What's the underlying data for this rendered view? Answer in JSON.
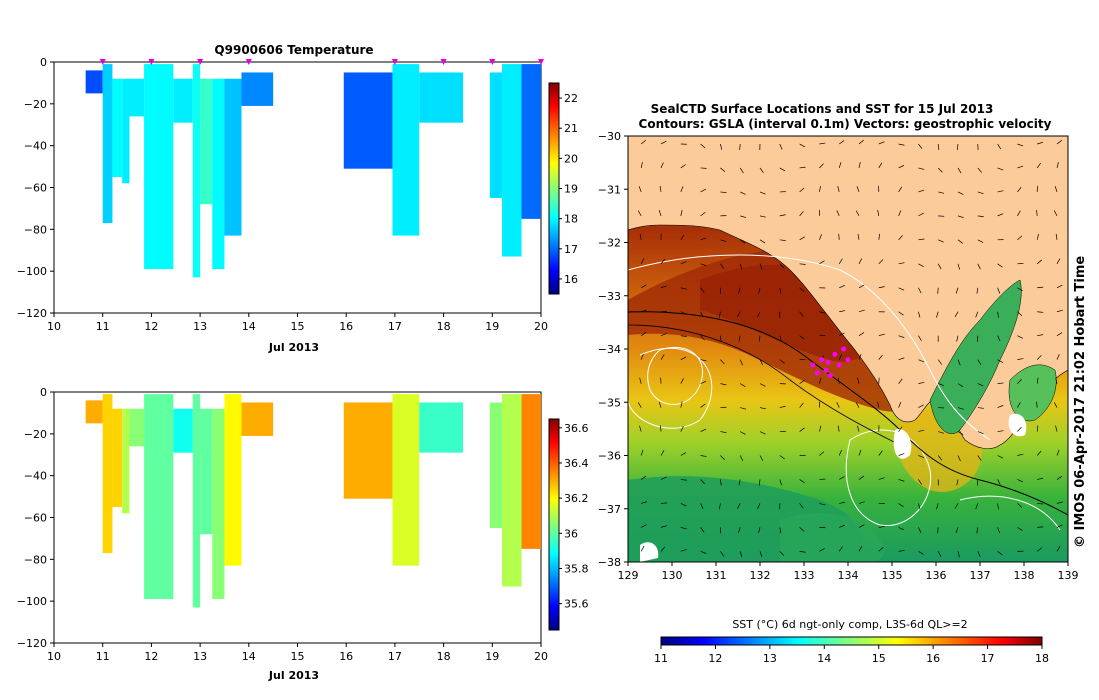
{
  "chart_data": [
    {
      "type": "heatmap",
      "panel": "temperature-profile",
      "title": "Q9900606  Temperature",
      "xlabel": "Jul 2013",
      "ylabel": "",
      "xlim": [
        10,
        20
      ],
      "ylim": [
        -120,
        0
      ],
      "x_ticks": [
        10,
        11,
        12,
        13,
        14,
        15,
        16,
        17,
        18,
        19,
        20
      ],
      "y_ticks": [
        0,
        -20,
        -40,
        -60,
        -80,
        -100,
        -120
      ],
      "y_tick_labels": [
        "0",
        "−20",
        "−40",
        "−60",
        "−80",
        "−100",
        "−120"
      ],
      "colorbar": {
        "min": 15.5,
        "max": 22.5,
        "ticks": [
          16,
          17,
          18,
          19,
          20,
          21,
          22
        ]
      },
      "profile_marker_days": [
        11.0,
        12.0,
        13.0,
        14.0,
        17.0,
        18.0,
        19.0,
        20.0
      ],
      "profiles": [
        {
          "x0": 10.65,
          "x1": 11.0,
          "top": -4,
          "bottom": -15,
          "value": 16.8
        },
        {
          "x0": 11.0,
          "x1": 11.2,
          "top": -1,
          "bottom": -77,
          "value": 17.7
        },
        {
          "x0": 11.2,
          "x1": 11.4,
          "top": -8,
          "bottom": -55,
          "value": 18.0
        },
        {
          "x0": 11.4,
          "x1": 11.55,
          "top": -8,
          "bottom": -58,
          "value": 17.9
        },
        {
          "x0": 11.55,
          "x1": 11.85,
          "top": -8,
          "bottom": -26,
          "value": 17.9
        },
        {
          "x0": 11.85,
          "x1": 12.45,
          "top": -1,
          "bottom": -99,
          "value": 18.0
        },
        {
          "x0": 12.45,
          "x1": 12.85,
          "top": -8,
          "bottom": -29,
          "value": 17.9
        },
        {
          "x0": 12.85,
          "x1": 13.0,
          "top": -1,
          "bottom": -103,
          "value": 18.1
        },
        {
          "x0": 13.0,
          "x1": 13.25,
          "top": -8,
          "bottom": -68,
          "value": 18.4
        },
        {
          "x0": 13.25,
          "x1": 13.5,
          "top": -8,
          "bottom": -99,
          "value": 18.0
        },
        {
          "x0": 13.5,
          "x1": 13.85,
          "top": -8,
          "bottom": -83,
          "value": 17.6
        },
        {
          "x0": 13.85,
          "x1": 14.5,
          "top": -5,
          "bottom": -21,
          "value": 17.2
        },
        {
          "x0": 15.95,
          "x1": 16.95,
          "top": -5,
          "bottom": -51,
          "value": 16.9
        },
        {
          "x0": 16.95,
          "x1": 17.5,
          "top": -1,
          "bottom": -83,
          "value": 17.9
        },
        {
          "x0": 17.5,
          "x1": 18.4,
          "top": -5,
          "bottom": -29,
          "value": 17.8
        },
        {
          "x0": 18.95,
          "x1": 19.2,
          "top": -5,
          "bottom": -65,
          "value": 17.8
        },
        {
          "x0": 19.2,
          "x1": 19.6,
          "top": -1,
          "bottom": -93,
          "value": 17.9
        },
        {
          "x0": 19.6,
          "x1": 20.0,
          "top": -1,
          "bottom": -75,
          "value": 17.0
        }
      ]
    },
    {
      "type": "heatmap",
      "panel": "salinity-profile",
      "title": "",
      "xlabel": "Jul 2013",
      "xlim": [
        10,
        20
      ],
      "ylim": [
        -120,
        0
      ],
      "x_ticks": [
        10,
        11,
        12,
        13,
        14,
        15,
        16,
        17,
        18,
        19,
        20
      ],
      "y_ticks": [
        0,
        -20,
        -40,
        -60,
        -80,
        -100,
        -120
      ],
      "y_tick_labels": [
        "0",
        "−20",
        "−40",
        "−60",
        "−80",
        "−100",
        "−120"
      ],
      "colorbar": {
        "min": 35.45,
        "max": 36.65,
        "ticks": [
          35.6,
          35.8,
          36.0,
          36.2,
          36.4,
          36.6
        ]
      },
      "profiles": [
        {
          "x0": 10.65,
          "x1": 11.0,
          "top": -4,
          "bottom": -15,
          "value": 36.3
        },
        {
          "x0": 11.0,
          "x1": 11.2,
          "top": -1,
          "bottom": -77,
          "value": 36.25
        },
        {
          "x0": 11.2,
          "x1": 11.4,
          "top": -8,
          "bottom": -55,
          "value": 36.25
        },
        {
          "x0": 11.4,
          "x1": 11.55,
          "top": -8,
          "bottom": -58,
          "value": 36.1
        },
        {
          "x0": 11.55,
          "x1": 11.85,
          "top": -8,
          "bottom": -26,
          "value": 36.05
        },
        {
          "x0": 11.85,
          "x1": 12.45,
          "top": -1,
          "bottom": -99,
          "value": 36.0
        },
        {
          "x0": 12.45,
          "x1": 12.85,
          "top": -8,
          "bottom": -29,
          "value": 35.9
        },
        {
          "x0": 12.85,
          "x1": 13.0,
          "top": -1,
          "bottom": -103,
          "value": 36.0
        },
        {
          "x0": 13.0,
          "x1": 13.25,
          "top": -8,
          "bottom": -68,
          "value": 36.0
        },
        {
          "x0": 13.25,
          "x1": 13.5,
          "top": -8,
          "bottom": -99,
          "value": 36.05
        },
        {
          "x0": 13.5,
          "x1": 13.85,
          "top": -1,
          "bottom": -83,
          "value": 36.2
        },
        {
          "x0": 13.85,
          "x1": 14.5,
          "top": -5,
          "bottom": -21,
          "value": 36.3
        },
        {
          "x0": 15.95,
          "x1": 16.95,
          "top": -5,
          "bottom": -51,
          "value": 36.3
        },
        {
          "x0": 16.95,
          "x1": 17.5,
          "top": -1,
          "bottom": -83,
          "value": 36.15
        },
        {
          "x0": 17.5,
          "x1": 18.4,
          "top": -5,
          "bottom": -29,
          "value": 35.95
        },
        {
          "x0": 18.95,
          "x1": 19.2,
          "top": -5,
          "bottom": -65,
          "value": 36.05
        },
        {
          "x0": 19.2,
          "x1": 19.6,
          "top": -1,
          "bottom": -93,
          "value": 36.1
        },
        {
          "x0": 19.6,
          "x1": 20.0,
          "top": -1,
          "bottom": -75,
          "value": 36.35
        }
      ]
    },
    {
      "type": "heatmap",
      "panel": "sst-map",
      "title": "SealCTD Surface Locations and SST for 15 Jul 2013",
      "subtitle": "Contours: GSLA (interval 0.1m) Vectors: geostrophic velocity",
      "xlim": [
        129,
        139
      ],
      "ylim": [
        -38,
        -30
      ],
      "x_ticks": [
        129,
        130,
        131,
        132,
        133,
        134,
        135,
        136,
        137,
        138,
        139
      ],
      "y_ticks": [
        -30,
        -31,
        -32,
        -33,
        -34,
        -35,
        -36,
        -37,
        -38
      ],
      "y_tick_labels": [
        "−30",
        "−31",
        "−32",
        "−33",
        "−34",
        "−35",
        "−36",
        "−37",
        "−38"
      ],
      "colorbar_label": "SST (°C) 6d ngt-only comp, L3S-6d QL>=2",
      "colorbar": {
        "min": 11,
        "max": 18,
        "ticks": [
          11,
          12,
          13,
          14,
          15,
          16,
          17,
          18
        ]
      },
      "seal_locations": [
        {
          "lon": 133.2,
          "lat": -34.3
        },
        {
          "lon": 133.4,
          "lat": -34.2
        },
        {
          "lon": 133.5,
          "lat": -34.4
        },
        {
          "lon": 133.7,
          "lat": -34.1
        },
        {
          "lon": 133.8,
          "lat": -34.3
        },
        {
          "lon": 133.6,
          "lat": -34.5
        },
        {
          "lon": 133.9,
          "lat": -34.0
        },
        {
          "lon": 133.3,
          "lat": -34.45
        },
        {
          "lon": 133.55,
          "lat": -34.25
        },
        {
          "lon": 134.0,
          "lat": -34.2
        }
      ]
    }
  ],
  "watermark": "©  IMOS 06-Apr-2017 21:02 Hobart Time"
}
